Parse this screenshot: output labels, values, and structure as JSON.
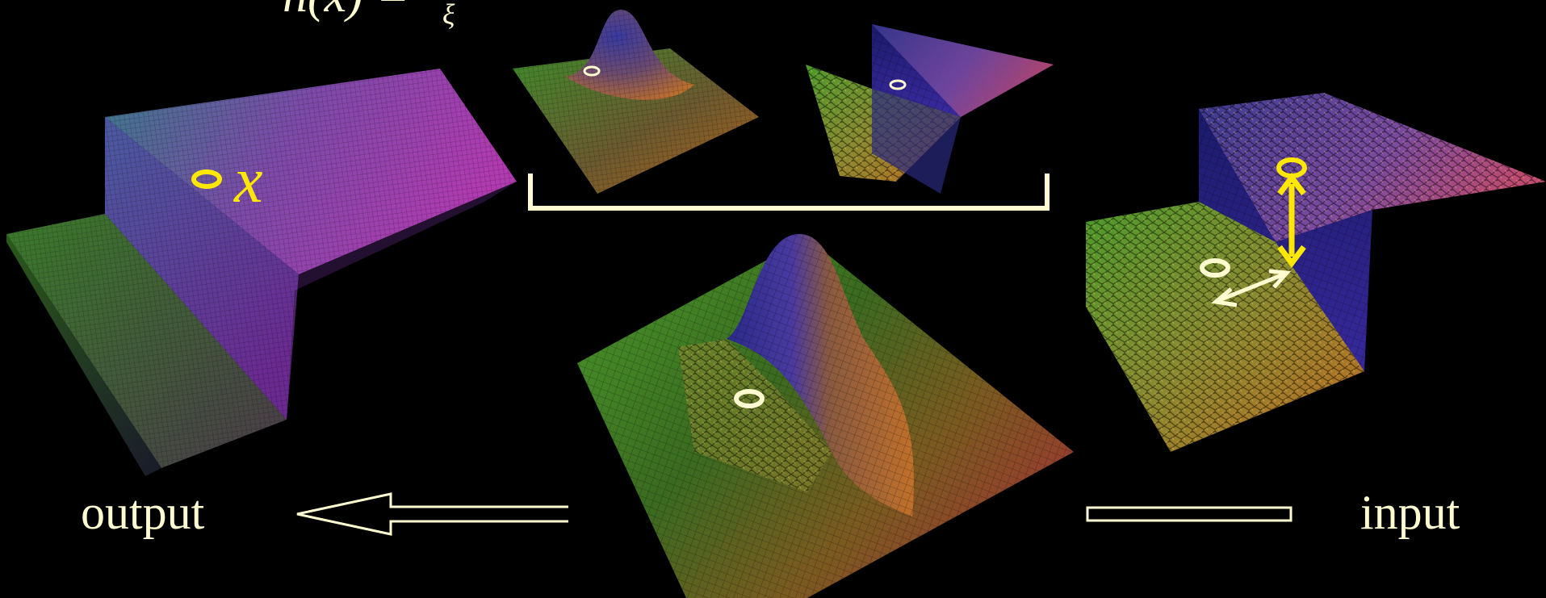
{
  "equation": {
    "lhs": "h(x) =",
    "subscript": "ξ"
  },
  "labels": {
    "output": "output",
    "input": "input",
    "point": "x"
  },
  "colors": {
    "background": "#000000",
    "annotation_light": "#fffbd0",
    "annotation_yellow": "#ffe800",
    "surface_green": "#3f8a2a",
    "surface_purple": "#7a2aa0",
    "surface_orange": "#c8701e",
    "surface_blue": "#2a2a90"
  },
  "panels": [
    {
      "name": "output-surface",
      "shape": "step-edge, denoised"
    },
    {
      "name": "spatial-kernel",
      "shape": "gaussian bump"
    },
    {
      "name": "range-kernel",
      "shape": "step-edge, noisy"
    },
    {
      "name": "bilateral-weight",
      "shape": "gaussian cut at edge"
    },
    {
      "name": "input-surface",
      "shape": "step-edge, noisy"
    }
  ]
}
